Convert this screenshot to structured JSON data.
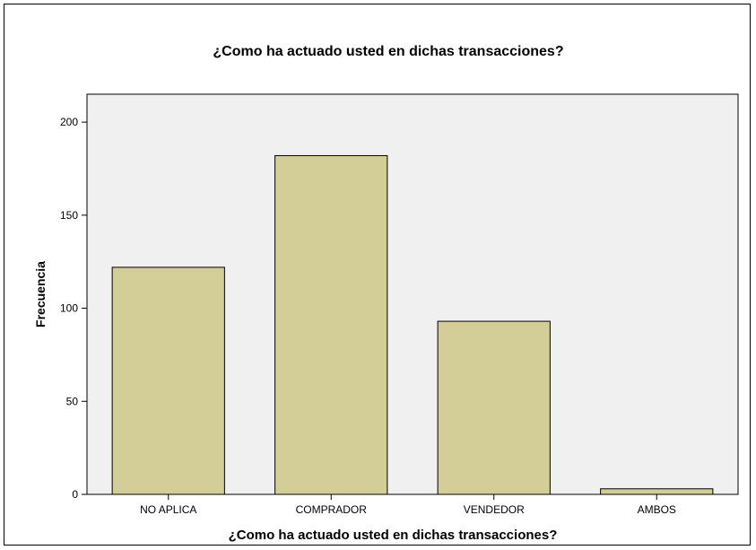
{
  "chart_data": {
    "type": "bar",
    "title": "¿Como ha actuado usted en dichas transacciones?",
    "xlabel": "¿Como ha actuado usted en dichas transacciones?",
    "ylabel": "Frecuencia",
    "categories": [
      "NO APLICA",
      "COMPRADOR",
      "VENDEDOR",
      "AMBOS"
    ],
    "values": [
      122,
      182,
      93,
      3
    ],
    "ylim": [
      0,
      215
    ],
    "yticks": [
      0,
      50,
      100,
      150,
      200
    ],
    "grid": false,
    "legend": "none",
    "colors": {
      "bar_fill": "#D3CE98",
      "bar_stroke": "#000000",
      "plot_background": "#F0F0F0",
      "page_background": "#FFFFFF"
    }
  }
}
